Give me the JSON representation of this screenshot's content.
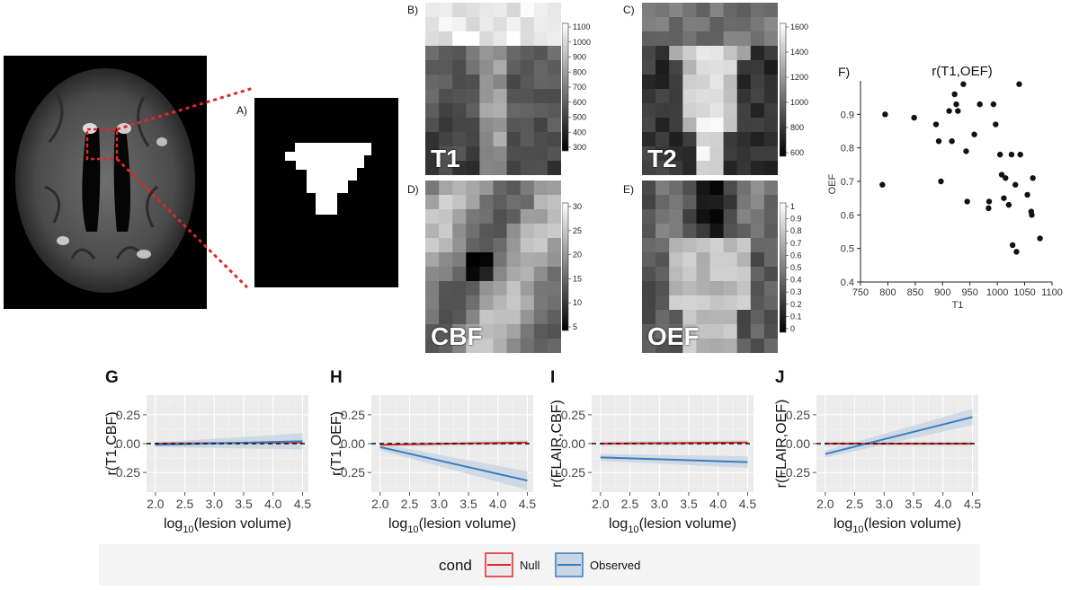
{
  "panels": {
    "a": {
      "label": "A)"
    },
    "b": {
      "label": "B)",
      "map": "T1",
      "cbar_ticks": [
        "1100",
        "1000",
        "900",
        "800",
        "700",
        "600",
        "500",
        "400",
        "300"
      ]
    },
    "c": {
      "label": "C)",
      "map": "T2",
      "cbar_ticks": [
        "1600",
        "1400",
        "1200",
        "1000",
        "800",
        "600"
      ]
    },
    "d": {
      "label": "D)",
      "map": "CBF",
      "cbar_ticks": [
        "30",
        "25",
        "20",
        "15",
        "10",
        "5"
      ]
    },
    "e": {
      "label": "E)",
      "map": "OEF",
      "cbar_ticks": [
        "1",
        "0.9",
        "0.8",
        "0.7",
        "0.6",
        "0.5",
        "0.4",
        "0.3",
        "0.2",
        "0.1",
        "0"
      ]
    },
    "f": {
      "label": "F)"
    }
  },
  "colors": {
    "null": "#e0262b",
    "observed": "#3a7dc0",
    "ribbon": "#c9d6e3",
    "plot_bg": "#ebebeb"
  },
  "legend": {
    "title": "cond",
    "null": "Null",
    "observed": "Observed"
  },
  "chart_data": [
    {
      "id": "F",
      "type": "scatter",
      "title": "r(T1,OEF)",
      "xlabel": "T1",
      "ylabel": "OEF",
      "xlim": [
        750,
        1100
      ],
      "ylim": [
        0.4,
        1.0
      ],
      "xticks": [
        "750",
        "800",
        "850",
        "900",
        "950",
        "1000",
        "1050",
        "1100"
      ],
      "yticks": [
        "0.4",
        "0.5",
        "0.6",
        "0.7",
        "0.8",
        "0.9"
      ],
      "points": [
        [
          790,
          0.69
        ],
        [
          795,
          0.9
        ],
        [
          848,
          0.89
        ],
        [
          888,
          0.87
        ],
        [
          893,
          0.82
        ],
        [
          897,
          0.7
        ],
        [
          912,
          0.91
        ],
        [
          917,
          0.82
        ],
        [
          922,
          0.96
        ],
        [
          925,
          0.93
        ],
        [
          928,
          0.91
        ],
        [
          938,
          0.99
        ],
        [
          943,
          0.79
        ],
        [
          945,
          0.64
        ],
        [
          958,
          0.84
        ],
        [
          968,
          0.93
        ],
        [
          984,
          0.62
        ],
        [
          985,
          0.64
        ],
        [
          993,
          0.93
        ],
        [
          997,
          0.87
        ],
        [
          1005,
          0.78
        ],
        [
          1008,
          0.72
        ],
        [
          1012,
          0.65
        ],
        [
          1015,
          0.71
        ],
        [
          1021,
          0.63
        ],
        [
          1026,
          0.78
        ],
        [
          1028,
          0.51
        ],
        [
          1033,
          0.69
        ],
        [
          1035,
          0.49
        ],
        [
          1040,
          0.99
        ],
        [
          1042,
          0.78
        ],
        [
          1055,
          0.66
        ],
        [
          1062,
          0.61
        ],
        [
          1063,
          0.6
        ],
        [
          1065,
          0.71
        ],
        [
          1078,
          0.53
        ]
      ]
    },
    {
      "id": "G",
      "type": "line",
      "xlabel": "log10(lesion volume)",
      "ylabel": "r(T1,CBF)",
      "xlim": [
        1.85,
        4.6
      ],
      "ylim": [
        -0.42,
        0.42
      ],
      "xticks": [
        "2.0",
        "2.5",
        "3.0",
        "3.5",
        "4.0",
        "4.5"
      ],
      "yticks": [
        "0.25",
        "0.00",
        "-0.25"
      ],
      "series": [
        {
          "name": "Null",
          "x": [
            2.0,
            4.5
          ],
          "y": [
            0.0,
            0.01
          ],
          "band": [
            0.02,
            0.02
          ]
        },
        {
          "name": "Observed",
          "x": [
            2.0,
            4.5
          ],
          "y": [
            -0.01,
            0.02
          ],
          "band": [
            0.02,
            0.07
          ]
        }
      ]
    },
    {
      "id": "H",
      "type": "line",
      "xlabel": "log10(lesion volume)",
      "ylabel": "r(T1,OEF)",
      "xlim": [
        1.85,
        4.6
      ],
      "ylim": [
        -0.42,
        0.42
      ],
      "xticks": [
        "2.0",
        "2.5",
        "3.0",
        "3.5",
        "4.0",
        "4.5"
      ],
      "yticks": [
        "0.25",
        "0.00",
        "-0.25"
      ],
      "series": [
        {
          "name": "Null",
          "x": [
            2.0,
            4.5
          ],
          "y": [
            -0.01,
            0.01
          ],
          "band": [
            0.02,
            0.02
          ]
        },
        {
          "name": "Observed",
          "x": [
            2.0,
            4.5
          ],
          "y": [
            -0.03,
            -0.32
          ],
          "band": [
            0.03,
            0.08
          ]
        }
      ]
    },
    {
      "id": "I",
      "type": "line",
      "xlabel": "log10(lesion volume)",
      "ylabel": "r(FLAIR,CBF)",
      "xlim": [
        1.85,
        4.6
      ],
      "ylim": [
        -0.42,
        0.42
      ],
      "xticks": [
        "2.0",
        "2.5",
        "3.0",
        "3.5",
        "4.0",
        "4.5"
      ],
      "yticks": [
        "0.25",
        "0.00",
        "-0.25"
      ],
      "series": [
        {
          "name": "Null",
          "x": [
            2.0,
            4.5
          ],
          "y": [
            0.0,
            0.01
          ],
          "band": [
            0.02,
            0.02
          ]
        },
        {
          "name": "Observed",
          "x": [
            2.0,
            4.5
          ],
          "y": [
            -0.12,
            -0.16
          ],
          "band": [
            0.03,
            0.05
          ]
        }
      ]
    },
    {
      "id": "J",
      "type": "line",
      "xlabel": "log10(lesion volume)",
      "ylabel": "r(FLAIR,OEF)",
      "xlim": [
        1.85,
        4.6
      ],
      "ylim": [
        -0.42,
        0.42
      ],
      "xticks": [
        "2.0",
        "2.5",
        "3.0",
        "3.5",
        "4.0",
        "4.5"
      ],
      "yticks": [
        "0.25",
        "0.00",
        "-0.25"
      ],
      "series": [
        {
          "name": "Null",
          "x": [
            2.0,
            4.5
          ],
          "y": [
            0.0,
            0.0
          ],
          "band": [
            0.02,
            0.02
          ]
        },
        {
          "name": "Observed",
          "x": [
            2.0,
            4.5
          ],
          "y": [
            -0.09,
            0.23
          ],
          "band": [
            0.03,
            0.07
          ]
        }
      ]
    }
  ]
}
